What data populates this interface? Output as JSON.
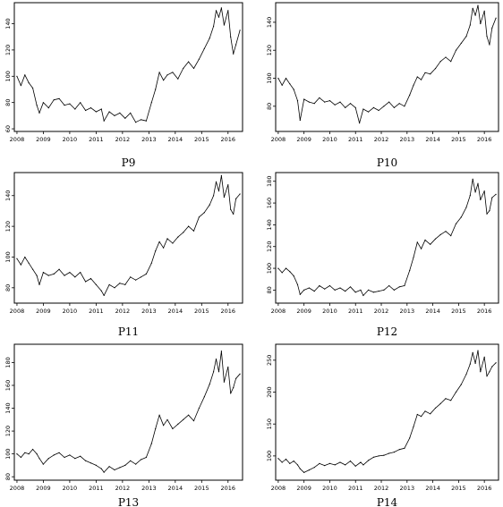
{
  "chart_data": [
    {
      "type": "line",
      "title": "P9",
      "xlabel": "",
      "ylabel": "",
      "xlim": [
        2007.9,
        2016.55
      ],
      "xticks": [
        2008,
        2009,
        2010,
        2011,
        2012,
        2013,
        2014,
        2015,
        2016
      ],
      "ylim": [
        58,
        156
      ],
      "yticks": [
        60,
        80,
        100,
        120,
        140
      ],
      "grid": false,
      "x": [
        2008.0,
        2008.15,
        2008.3,
        2008.45,
        2008.6,
        2008.75,
        2008.85,
        2009.0,
        2009.2,
        2009.4,
        2009.6,
        2009.8,
        2010.0,
        2010.2,
        2010.4,
        2010.6,
        2010.8,
        2011.0,
        2011.2,
        2011.3,
        2011.5,
        2011.7,
        2011.9,
        2012.1,
        2012.3,
        2012.5,
        2012.7,
        2012.9,
        2013.1,
        2013.25,
        2013.4,
        2013.55,
        2013.7,
        2013.9,
        2014.1,
        2014.3,
        2014.5,
        2014.7,
        2014.9,
        2015.1,
        2015.3,
        2015.45,
        2015.55,
        2015.65,
        2015.75,
        2015.85,
        2016.0,
        2016.1,
        2016.2,
        2016.3,
        2016.45
      ],
      "values": [
        100,
        93,
        101,
        95,
        91,
        78,
        72,
        80,
        76,
        82,
        83,
        78,
        79,
        75,
        80,
        74,
        76,
        73,
        75,
        66,
        73,
        70,
        72,
        68,
        72,
        65,
        67,
        66,
        80,
        90,
        103,
        97,
        101,
        103,
        98,
        106,
        111,
        106,
        113,
        121,
        129,
        138,
        150,
        145,
        152,
        139,
        150,
        130,
        117,
        124,
        135
      ]
    },
    {
      "type": "line",
      "title": "P10",
      "xlabel": "",
      "ylabel": "",
      "xlim": [
        2007.9,
        2016.55
      ],
      "xticks": [
        2008,
        2009,
        2010,
        2011,
        2012,
        2013,
        2014,
        2015,
        2016
      ],
      "ylim": [
        62,
        154
      ],
      "yticks": [
        80,
        100,
        120,
        140
      ],
      "grid": false,
      "x": [
        2008.0,
        2008.15,
        2008.3,
        2008.45,
        2008.6,
        2008.75,
        2008.85,
        2009.0,
        2009.2,
        2009.4,
        2009.6,
        2009.8,
        2010.0,
        2010.2,
        2010.4,
        2010.6,
        2010.8,
        2011.0,
        2011.15,
        2011.3,
        2011.5,
        2011.7,
        2011.9,
        2012.1,
        2012.3,
        2012.5,
        2012.7,
        2012.9,
        2013.1,
        2013.25,
        2013.4,
        2013.55,
        2013.7,
        2013.9,
        2014.1,
        2014.3,
        2014.5,
        2014.7,
        2014.9,
        2015.1,
        2015.3,
        2015.45,
        2015.55,
        2015.65,
        2015.75,
        2015.85,
        2016.0,
        2016.1,
        2016.2,
        2016.3,
        2016.45
      ],
      "values": [
        100,
        95,
        100,
        96,
        92,
        84,
        70,
        85,
        83,
        82,
        86,
        83,
        84,
        81,
        83,
        79,
        82,
        79,
        68,
        78,
        76,
        79,
        77,
        80,
        83,
        79,
        82,
        80,
        88,
        95,
        101,
        99,
        104,
        103,
        107,
        112,
        115,
        112,
        120,
        125,
        130,
        138,
        150,
        145,
        152,
        139,
        148,
        130,
        124,
        136,
        143
      ]
    },
    {
      "type": "line",
      "title": "P11",
      "xlabel": "",
      "ylabel": "",
      "xlim": [
        2007.9,
        2016.55
      ],
      "xticks": [
        2008,
        2009,
        2010,
        2011,
        2012,
        2013,
        2014,
        2015,
        2016
      ],
      "ylim": [
        70,
        155
      ],
      "yticks": [
        80,
        100,
        120,
        140
      ],
      "grid": false,
      "x": [
        2008.0,
        2008.15,
        2008.3,
        2008.45,
        2008.6,
        2008.75,
        2008.85,
        2009.0,
        2009.2,
        2009.4,
        2009.6,
        2009.8,
        2010.0,
        2010.2,
        2010.4,
        2010.6,
        2010.8,
        2011.0,
        2011.2,
        2011.3,
        2011.5,
        2011.7,
        2011.9,
        2012.1,
        2012.3,
        2012.5,
        2012.7,
        2012.9,
        2013.1,
        2013.25,
        2013.4,
        2013.55,
        2013.7,
        2013.9,
        2014.1,
        2014.3,
        2014.5,
        2014.7,
        2014.9,
        2015.1,
        2015.3,
        2015.45,
        2015.55,
        2015.65,
        2015.75,
        2015.85,
        2016.0,
        2016.1,
        2016.2,
        2016.3,
        2016.45
      ],
      "values": [
        99,
        95,
        100,
        96,
        92,
        88,
        82,
        90,
        88,
        89,
        92,
        88,
        90,
        87,
        90,
        84,
        86,
        82,
        78,
        75,
        82,
        80,
        83,
        82,
        87,
        85,
        87,
        89,
        96,
        104,
        110,
        106,
        112,
        109,
        113,
        116,
        120,
        117,
        126,
        129,
        134,
        140,
        149,
        143,
        153,
        139,
        147,
        131,
        128,
        138,
        141
      ]
    },
    {
      "type": "line",
      "title": "P12",
      "xlabel": "",
      "ylabel": "",
      "xlim": [
        2007.9,
        2016.55
      ],
      "xticks": [
        2008,
        2009,
        2010,
        2011,
        2012,
        2013,
        2014,
        2015,
        2016
      ],
      "ylim": [
        68,
        188
      ],
      "yticks": [
        80,
        100,
        120,
        140,
        160,
        180
      ],
      "grid": false,
      "x": [
        2008.0,
        2008.15,
        2008.3,
        2008.45,
        2008.6,
        2008.75,
        2008.85,
        2009.0,
        2009.2,
        2009.4,
        2009.6,
        2009.8,
        2010.0,
        2010.2,
        2010.4,
        2010.6,
        2010.8,
        2011.0,
        2011.2,
        2011.3,
        2011.5,
        2011.7,
        2011.9,
        2012.1,
        2012.3,
        2012.5,
        2012.7,
        2012.9,
        2013.1,
        2013.25,
        2013.4,
        2013.55,
        2013.7,
        2013.9,
        2014.1,
        2014.3,
        2014.5,
        2014.7,
        2014.9,
        2015.1,
        2015.3,
        2015.45,
        2015.55,
        2015.65,
        2015.75,
        2015.85,
        2016.0,
        2016.1,
        2016.2,
        2016.3,
        2016.45
      ],
      "values": [
        100,
        96,
        100,
        97,
        93,
        85,
        76,
        80,
        82,
        79,
        84,
        81,
        84,
        80,
        82,
        79,
        83,
        78,
        80,
        75,
        80,
        78,
        79,
        80,
        84,
        80,
        83,
        84,
        98,
        110,
        124,
        118,
        126,
        122,
        127,
        131,
        134,
        130,
        141,
        147,
        156,
        167,
        182,
        170,
        178,
        163,
        171,
        150,
        153,
        165,
        168
      ]
    },
    {
      "type": "line",
      "title": "P13",
      "xlabel": "",
      "ylabel": "",
      "xlim": [
        2007.9,
        2016.55
      ],
      "xticks": [
        2008,
        2009,
        2010,
        2011,
        2012,
        2013,
        2014,
        2015,
        2016
      ],
      "ylim": [
        77,
        196
      ],
      "yticks": [
        80,
        100,
        120,
        140,
        160,
        180
      ],
      "grid": false,
      "x": [
        2008.0,
        2008.15,
        2008.3,
        2008.45,
        2008.6,
        2008.75,
        2008.85,
        2009.0,
        2009.2,
        2009.4,
        2009.6,
        2009.8,
        2010.0,
        2010.2,
        2010.4,
        2010.6,
        2010.8,
        2011.0,
        2011.2,
        2011.3,
        2011.5,
        2011.7,
        2011.9,
        2012.1,
        2012.3,
        2012.5,
        2012.7,
        2012.9,
        2013.1,
        2013.25,
        2013.4,
        2013.55,
        2013.7,
        2013.9,
        2014.1,
        2014.3,
        2014.5,
        2014.7,
        2014.9,
        2015.1,
        2015.3,
        2015.45,
        2015.55,
        2015.65,
        2015.75,
        2015.85,
        2016.0,
        2016.1,
        2016.2,
        2016.3,
        2016.45
      ],
      "values": [
        100,
        97,
        101,
        100,
        104,
        100,
        96,
        91,
        96,
        99,
        101,
        97,
        99,
        96,
        98,
        94,
        92,
        90,
        87,
        84,
        89,
        86,
        88,
        90,
        94,
        91,
        95,
        97,
        109,
        122,
        134,
        125,
        130,
        122,
        126,
        130,
        134,
        129,
        140,
        150,
        161,
        172,
        183,
        172,
        190,
        163,
        176,
        153,
        158,
        166,
        170
      ]
    },
    {
      "type": "line",
      "title": "P14",
      "xlabel": "",
      "ylabel": "",
      "xlim": [
        2007.9,
        2016.55
      ],
      "xticks": [
        2008,
        2009,
        2010,
        2011,
        2012,
        2013,
        2014,
        2015,
        2016
      ],
      "ylim": [
        62,
        275
      ],
      "yticks": [
        100,
        150,
        200,
        250
      ],
      "grid": false,
      "x": [
        2008.0,
        2008.15,
        2008.3,
        2008.45,
        2008.6,
        2008.75,
        2008.85,
        2009.0,
        2009.2,
        2009.4,
        2009.6,
        2009.8,
        2010.0,
        2010.2,
        2010.4,
        2010.6,
        2010.8,
        2011.0,
        2011.2,
        2011.3,
        2011.5,
        2011.7,
        2011.9,
        2012.1,
        2012.3,
        2012.5,
        2012.7,
        2012.9,
        2013.1,
        2013.25,
        2013.4,
        2013.55,
        2013.7,
        2013.9,
        2014.1,
        2014.3,
        2014.5,
        2014.7,
        2014.9,
        2015.1,
        2015.3,
        2015.45,
        2015.55,
        2015.65,
        2015.75,
        2015.85,
        2016.0,
        2016.1,
        2016.2,
        2016.3,
        2016.45
      ],
      "values": [
        96,
        90,
        95,
        88,
        92,
        86,
        80,
        74,
        78,
        82,
        88,
        85,
        88,
        86,
        90,
        86,
        92,
        84,
        90,
        86,
        93,
        98,
        100,
        101,
        104,
        106,
        110,
        112,
        128,
        146,
        165,
        162,
        170,
        166,
        175,
        182,
        190,
        187,
        200,
        212,
        228,
        244,
        262,
        245,
        265,
        232,
        255,
        225,
        232,
        240,
        246
      ]
    }
  ]
}
